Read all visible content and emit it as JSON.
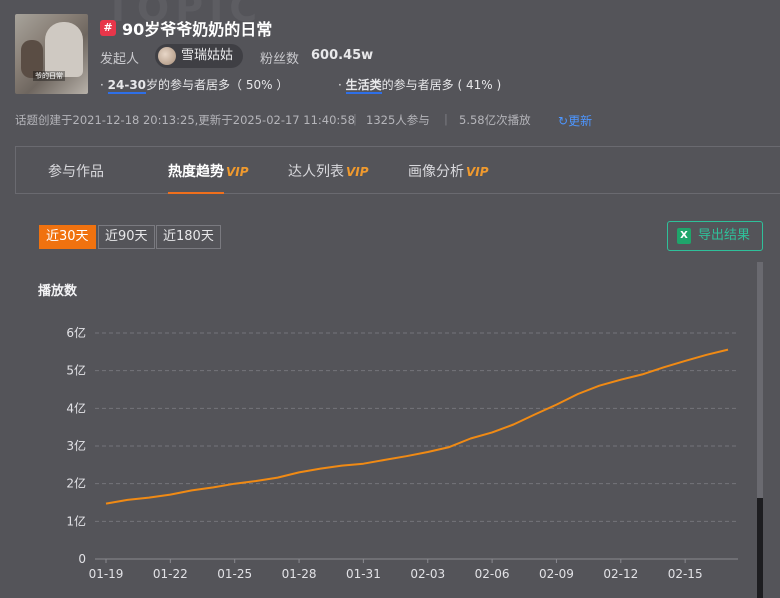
{
  "topic": {
    "watermark": "TOPIC",
    "thumb_caption": "爷的日常",
    "hash_symbol": "#",
    "title": "90岁爷爷奶奶的日常",
    "initiator_label": "发起人",
    "author": "雪瑞姑姑",
    "fans_label": "粉丝数",
    "fans_value": "600.45w",
    "stat_age_key": "24-30",
    "stat_age_rest": "岁的参与者居多（ 50% ）",
    "stat_type_key": "生活类",
    "stat_type_rest": "的参与者居多 ( 41% )",
    "created_text": "话题创建于2021-12-18 20:13:25,更新于2025-02-17 11:40:58",
    "participants": "1325人参与",
    "plays": "5.58亿次播放",
    "refresh_label": "更新"
  },
  "tabs": [
    {
      "label": "参与作品",
      "vip": ""
    },
    {
      "label": "热度趋势",
      "vip": "VIP"
    },
    {
      "label": "达人列表",
      "vip": "VIP"
    },
    {
      "label": "画像分析",
      "vip": "VIP"
    }
  ],
  "ranges": [
    "近30天",
    "近90天",
    "近180天"
  ],
  "export_label": "导出结果",
  "colors": {
    "accent": "#f0720f",
    "line": "#f08a14",
    "export": "#2fc09a",
    "link": "#4d96ff"
  },
  "chart_data": {
    "type": "line",
    "ylabel": "播放数",
    "yticks": [
      "0",
      "1亿",
      "2亿",
      "3亿",
      "4亿",
      "5亿",
      "6亿"
    ],
    "ylim": [
      0,
      6
    ],
    "xticks": [
      "01-19",
      "01-22",
      "01-25",
      "01-28",
      "01-31",
      "02-03",
      "02-06",
      "02-09",
      "02-12",
      "02-15"
    ],
    "x": [
      "01-19",
      "01-20",
      "01-21",
      "01-22",
      "01-23",
      "01-24",
      "01-25",
      "01-26",
      "01-27",
      "01-28",
      "01-29",
      "01-30",
      "01-31",
      "02-01",
      "02-02",
      "02-03",
      "02-04",
      "02-05",
      "02-06",
      "02-07",
      "02-08",
      "02-09",
      "02-10",
      "02-11",
      "02-12",
      "02-13",
      "02-14",
      "02-15",
      "02-16",
      "02-17"
    ],
    "series": [
      {
        "values": [
          1.47,
          1.57,
          1.63,
          1.71,
          1.82,
          1.9,
          2.0,
          2.07,
          2.16,
          2.3,
          2.4,
          2.48,
          2.53,
          2.63,
          2.73,
          2.84,
          2.97,
          3.2,
          3.36,
          3.57,
          3.84,
          4.1,
          4.38,
          4.6,
          4.76,
          4.9,
          5.09,
          5.26,
          5.42,
          5.56
        ]
      }
    ],
    "grid": true
  }
}
